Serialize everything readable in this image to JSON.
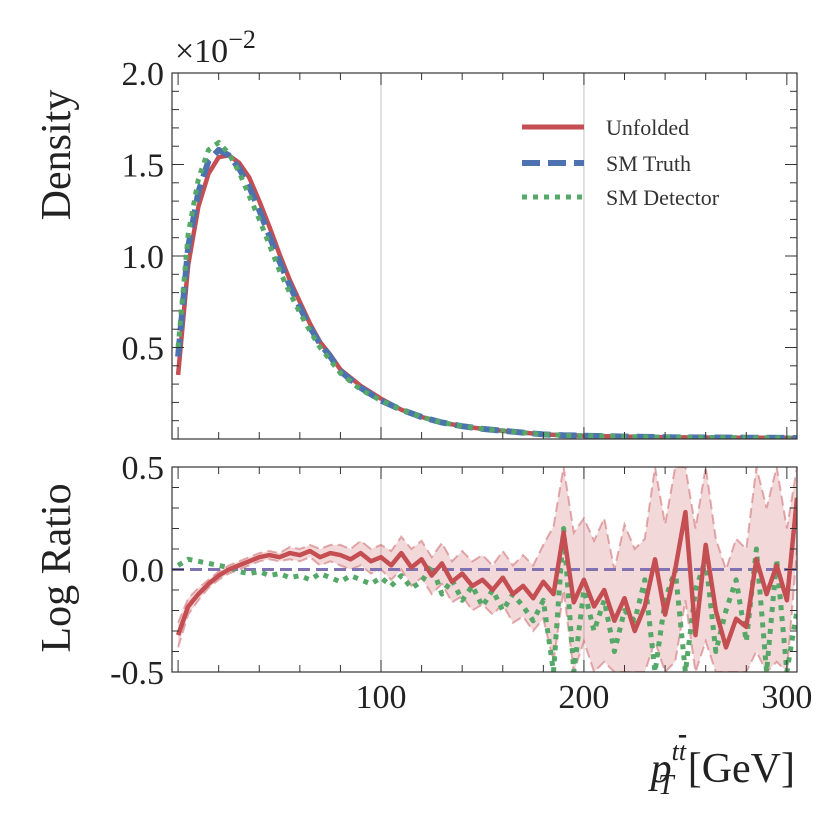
{
  "chart_data": [
    {
      "type": "line",
      "ylabel": "Density",
      "ylim": [
        0.0,
        2.0
      ],
      "yticks": [
        "0.5",
        "1.0",
        "1.5",
        "2.0"
      ],
      "y_multiplier": "×10",
      "y_multiplier_exp": "−2",
      "xlim": [
        -3,
        305
      ],
      "grid_x": [
        100,
        200
      ],
      "legend": {
        "placement": "top-right",
        "entries": [
          {
            "label": "Unfolded",
            "style": "solid"
          },
          {
            "label": "SM Truth",
            "style": "dashed"
          },
          {
            "label": "SM Detector",
            "style": "dotted"
          }
        ]
      },
      "series": [
        {
          "name": "Unfolded",
          "color": "#c44e52",
          "x": [
            0,
            5,
            10,
            15,
            20,
            25,
            30,
            35,
            40,
            45,
            50,
            55,
            60,
            65,
            70,
            75,
            80,
            90,
            100,
            110,
            120,
            130,
            140,
            150,
            160,
            170,
            180,
            190,
            200,
            220,
            240,
            260,
            280,
            300,
            305
          ],
          "y": [
            0.35,
            0.95,
            1.27,
            1.45,
            1.54,
            1.55,
            1.51,
            1.43,
            1.3,
            1.16,
            1.01,
            0.87,
            0.75,
            0.63,
            0.53,
            0.46,
            0.38,
            0.29,
            0.22,
            0.16,
            0.12,
            0.09,
            0.07,
            0.055,
            0.045,
            0.035,
            0.025,
            0.02,
            0.018,
            0.013,
            0.01,
            0.008,
            0.007,
            0.006,
            0.005
          ]
        },
        {
          "name": "SM Truth",
          "color": "#4c72b0",
          "x": [
            0,
            5,
            10,
            15,
            20,
            25,
            30,
            35,
            40,
            45,
            50,
            55,
            60,
            65,
            70,
            75,
            80,
            90,
            100,
            110,
            120,
            130,
            140,
            150,
            160,
            170,
            180,
            190,
            200,
            220,
            240,
            260,
            280,
            300,
            305
          ],
          "y": [
            0.45,
            1.05,
            1.35,
            1.52,
            1.58,
            1.55,
            1.48,
            1.38,
            1.25,
            1.11,
            0.97,
            0.84,
            0.72,
            0.61,
            0.52,
            0.45,
            0.37,
            0.28,
            0.21,
            0.16,
            0.12,
            0.09,
            0.07,
            0.055,
            0.045,
            0.035,
            0.025,
            0.02,
            0.018,
            0.013,
            0.01,
            0.008,
            0.007,
            0.006,
            0.005
          ]
        },
        {
          "name": "SM Detector",
          "color": "#55a868",
          "x": [
            0,
            5,
            10,
            15,
            20,
            25,
            30,
            35,
            40,
            45,
            50,
            55,
            60,
            65,
            70,
            75,
            80,
            90,
            100,
            110,
            120,
            130,
            140,
            150,
            160,
            170,
            180,
            190,
            200,
            220,
            240,
            260,
            280,
            300,
            305
          ],
          "y": [
            0.5,
            1.12,
            1.42,
            1.58,
            1.62,
            1.56,
            1.46,
            1.33,
            1.2,
            1.06,
            0.92,
            0.8,
            0.69,
            0.59,
            0.5,
            0.43,
            0.36,
            0.27,
            0.21,
            0.16,
            0.12,
            0.09,
            0.07,
            0.055,
            0.045,
            0.035,
            0.025,
            0.02,
            0.018,
            0.013,
            0.01,
            0.008,
            0.007,
            0.006,
            0.005
          ]
        }
      ]
    },
    {
      "type": "line",
      "ylabel": "Log Ratio",
      "xlabel": "p_T^{tt̄} [GeV]",
      "xlabel_parts": {
        "p": "p",
        "sub": "T",
        "sup_t": "t",
        "sup_tbar": "t",
        "unit": "[GeV]"
      },
      "ylim": [
        -0.5,
        0.5
      ],
      "yticks": [
        "-0.5",
        "0.0",
        "0.5"
      ],
      "xticks": [
        "100",
        "200",
        "300"
      ],
      "xlim": [
        -3,
        305
      ],
      "grid_x": [
        100,
        200
      ],
      "reference_line": {
        "y": 0.0,
        "color": "#8172b2",
        "style": "dashed"
      },
      "series": [
        {
          "name": "Unfolded",
          "color": "#c44e52",
          "x": [
            0,
            5,
            10,
            15,
            20,
            25,
            30,
            35,
            40,
            45,
            50,
            55,
            60,
            65,
            70,
            75,
            80,
            85,
            90,
            95,
            100,
            105,
            110,
            115,
            120,
            125,
            130,
            135,
            140,
            145,
            150,
            155,
            160,
            165,
            170,
            175,
            180,
            185,
            190,
            195,
            200,
            205,
            210,
            215,
            220,
            225,
            230,
            235,
            240,
            245,
            250,
            255,
            260,
            265,
            270,
            275,
            280,
            285,
            290,
            295,
            300,
            305
          ],
          "y": [
            -0.32,
            -0.18,
            -0.12,
            -0.07,
            -0.03,
            0.0,
            0.02,
            0.04,
            0.06,
            0.07,
            0.06,
            0.08,
            0.07,
            0.09,
            0.06,
            0.08,
            0.07,
            0.05,
            0.08,
            0.04,
            0.06,
            0.02,
            0.08,
            0.01,
            0.05,
            -0.03,
            0.03,
            -0.06,
            -0.02,
            -0.08,
            -0.05,
            -0.1,
            -0.04,
            -0.12,
            -0.08,
            -0.14,
            -0.06,
            -0.12,
            0.18,
            -0.16,
            -0.05,
            -0.18,
            -0.1,
            -0.25,
            -0.14,
            -0.3,
            -0.18,
            0.05,
            -0.22,
            0.0,
            0.28,
            -0.32,
            0.12,
            -0.2,
            -0.38,
            -0.24,
            -0.28,
            0.05,
            -0.12,
            0.02,
            -0.15,
            0.35
          ]
        },
        {
          "name": "SM Detector",
          "color": "#55a868",
          "x": [
            0,
            5,
            10,
            15,
            20,
            25,
            30,
            35,
            40,
            45,
            50,
            55,
            60,
            65,
            70,
            75,
            80,
            85,
            90,
            95,
            100,
            105,
            110,
            115,
            120,
            125,
            130,
            135,
            140,
            145,
            150,
            155,
            160,
            165,
            170,
            175,
            180,
            185,
            190,
            195,
            200,
            205,
            210,
            215,
            220,
            225,
            230,
            235,
            240,
            245,
            250,
            255,
            260,
            265,
            270,
            275,
            280,
            285,
            290,
            295,
            300,
            305
          ],
          "y": [
            0.02,
            0.05,
            0.04,
            0.03,
            0.02,
            0.01,
            -0.01,
            -0.02,
            -0.01,
            -0.03,
            -0.02,
            -0.04,
            -0.03,
            -0.05,
            -0.02,
            -0.04,
            -0.06,
            -0.03,
            -0.05,
            -0.07,
            -0.04,
            -0.08,
            -0.03,
            -0.09,
            -0.06,
            0.02,
            -0.12,
            -0.05,
            -0.15,
            -0.08,
            -0.18,
            -0.1,
            -0.2,
            -0.12,
            -0.18,
            -0.25,
            -0.15,
            -0.5,
            0.2,
            -0.5,
            -0.1,
            -0.3,
            -0.15,
            -0.4,
            -0.2,
            -0.25,
            -0.05,
            -0.5,
            -0.15,
            0.0,
            -0.5,
            -0.1,
            0.05,
            -0.4,
            -0.2,
            -0.05,
            -0.35,
            0.1,
            -0.5,
            0.05,
            -0.5,
            -0.2
          ]
        }
      ],
      "error_band": {
        "series": "Unfolded",
        "color": "#c44e52",
        "x": [
          0,
          5,
          10,
          15,
          20,
          25,
          30,
          35,
          40,
          45,
          50,
          55,
          60,
          65,
          70,
          75,
          80,
          85,
          90,
          95,
          100,
          105,
          110,
          115,
          120,
          125,
          130,
          135,
          140,
          145,
          150,
          155,
          160,
          165,
          170,
          175,
          180,
          185,
          190,
          195,
          200,
          205,
          210,
          215,
          220,
          225,
          230,
          235,
          240,
          245,
          250,
          255,
          260,
          265,
          270,
          275,
          280,
          285,
          290,
          295,
          300,
          305
        ],
        "lower": [
          -0.38,
          -0.22,
          -0.15,
          -0.09,
          -0.05,
          -0.02,
          0.0,
          0.02,
          0.04,
          0.05,
          0.04,
          0.05,
          0.04,
          0.06,
          0.02,
          0.04,
          0.02,
          0.0,
          0.02,
          -0.02,
          0.0,
          -0.05,
          0.0,
          -0.08,
          -0.04,
          -0.12,
          -0.07,
          -0.16,
          -0.13,
          -0.2,
          -0.17,
          -0.22,
          -0.17,
          -0.26,
          -0.23,
          -0.3,
          -0.24,
          -0.45,
          -0.1,
          -0.5,
          -0.35,
          -0.5,
          -0.45,
          -0.5,
          -0.5,
          -0.5,
          -0.5,
          -0.35,
          -0.5,
          -0.45,
          -0.15,
          -0.5,
          -0.35,
          -0.5,
          -0.5,
          -0.5,
          -0.5,
          -0.4,
          -0.5,
          -0.45,
          -0.5,
          0.1
        ],
        "upper": [
          -0.26,
          -0.14,
          -0.09,
          -0.05,
          -0.01,
          0.02,
          0.04,
          0.06,
          0.08,
          0.09,
          0.08,
          0.11,
          0.1,
          0.12,
          0.1,
          0.12,
          0.12,
          0.1,
          0.14,
          0.1,
          0.12,
          0.09,
          0.16,
          0.1,
          0.14,
          0.06,
          0.13,
          0.04,
          0.09,
          0.04,
          0.07,
          0.02,
          0.09,
          0.02,
          0.07,
          0.02,
          0.12,
          0.21,
          0.5,
          0.18,
          0.25,
          0.14,
          0.25,
          0.0,
          0.22,
          0.1,
          0.15,
          0.5,
          0.22,
          0.5,
          0.5,
          0.2,
          0.5,
          0.15,
          0.0,
          0.15,
          0.1,
          0.5,
          0.3,
          0.5,
          0.2,
          0.5
        ]
      }
    }
  ]
}
